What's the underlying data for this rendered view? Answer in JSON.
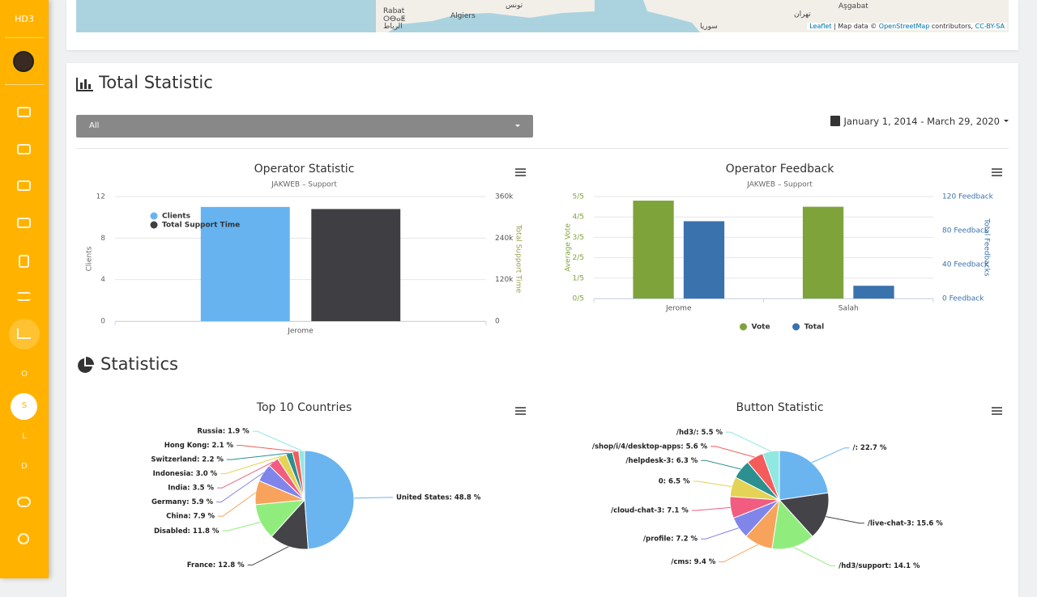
{
  "sidebar": {
    "brand": "HD3",
    "letters": [
      "O",
      "S",
      "L",
      "D"
    ]
  },
  "map": {
    "labels": [
      "Rabat",
      "ⵔⴱⴰⵟ",
      "الرباط",
      "Algiers",
      "تونس",
      "Aşgabat",
      "تهران",
      "سوريا"
    ],
    "attribution": {
      "leaflet": "Leaflet",
      "sep": " | Map data © ",
      "osm": "OpenStreetMap",
      "contrib": " contributors, ",
      "license": "CC-BY-SA"
    }
  },
  "total_section": {
    "title": "Total Statistic",
    "select": "All",
    "date_range": "January 1, 2014 - March 29, 2020"
  },
  "stats_section": {
    "title": "Statistics"
  },
  "chart_data": [
    {
      "type": "bar",
      "title": "Operator Statistic",
      "subtitle": "JAKWEB – Support",
      "categories": [
        "Jerome"
      ],
      "series": [
        {
          "name": "Clients",
          "color": "#66b3f0",
          "values": [
            11
          ]
        },
        {
          "name": "Total Support Time",
          "color": "#3f3f43",
          "values": [
            324000
          ],
          "axis": "y2"
        }
      ],
      "ylim": [
        0,
        12
      ],
      "yticks": [
        0,
        4,
        8,
        12
      ],
      "y_label": "Clients",
      "y_color": "#666666",
      "y2lim": [
        0,
        360000
      ],
      "y2ticks": [
        0,
        {
          "value": 120000,
          "label": "120k"
        },
        {
          "value": 240000,
          "label": "240k"
        },
        {
          "value": 360000,
          "label": "360k"
        }
      ],
      "y2_label": "Total Support Time",
      "y2_color": "#9aa04a",
      "grid": true,
      "legend": "top-left"
    },
    {
      "type": "bar",
      "title": "Operator Feedback",
      "subtitle": "JAKWEB – Support",
      "categories": [
        "Jerome",
        "Salah"
      ],
      "series": [
        {
          "name": "Vote",
          "color": "#7ea33a",
          "values": [
            4.8,
            4.5
          ]
        },
        {
          "name": "Total",
          "color": "#3a72ad",
          "values": [
            91,
            15
          ],
          "axis": "y2"
        }
      ],
      "ylim": [
        0,
        5
      ],
      "yticks": [
        {
          "value": 0,
          "label": "0/5"
        },
        {
          "value": 1,
          "label": "1/5"
        },
        {
          "value": 2,
          "label": "2/5"
        },
        {
          "value": 3,
          "label": "3/5"
        },
        {
          "value": 4,
          "label": "4/5"
        },
        {
          "value": 5,
          "label": "5/5"
        }
      ],
      "y_label": "Average Vote",
      "y_color": "#7ea33a",
      "y2lim": [
        0,
        120
      ],
      "y2ticks": [
        {
          "value": 0,
          "label": "0 Feedback"
        },
        {
          "value": 40,
          "label": "40 Feedback"
        },
        {
          "value": 80,
          "label": "80 Feedback"
        },
        {
          "value": 120,
          "label": "120 Feedback"
        }
      ],
      "y2_label": "Total Feedbacks",
      "y2_color": "#3a72ad",
      "grid": true,
      "legend": "bottom"
    },
    {
      "type": "pie",
      "title": "Top 10 Countries",
      "values": [
        48.8,
        12.8,
        11.8,
        7.9,
        5.9,
        3.5,
        3.0,
        2.2,
        2.1,
        1.9
      ],
      "labels": [
        "United States: 48.8 %",
        "France: 12.8 %",
        "Disabled: 11.8 %",
        "China: 7.9 %",
        "Germany: 5.9 %",
        "India: 3.5 %",
        "Indonesia: 3.0 %",
        "Switzerland: 2.2 %",
        "Hong Kong: 2.1 %",
        "Russia: 1.9 %"
      ],
      "colors": [
        "#6ab4f0",
        "#434348",
        "#90ed7d",
        "#f7a35c",
        "#8085e9",
        "#f15c80",
        "#e4d354",
        "#2b908f",
        "#f45b5b",
        "#91e8e1"
      ]
    },
    {
      "type": "pie",
      "title": "Button Statistic",
      "values": [
        22.7,
        15.6,
        14.1,
        9.4,
        7.2,
        7.1,
        6.5,
        6.3,
        5.6,
        5.5
      ],
      "labels": [
        "/: 22.7 %",
        "/live-chat-3: 15.6 %",
        "/hd3/support: 14.1 %",
        "/cms: 9.4 %",
        "/profile: 7.2 %",
        "/cloud-chat-3: 7.1 %",
        "0: 6.5 %",
        "/helpdesk-3: 6.3 %",
        "/shop/i/4/desktop-apps: 5.6 %",
        "/hd3/: 5.5 %"
      ],
      "colors": [
        "#6ab4f0",
        "#434348",
        "#90ed7d",
        "#f7a35c",
        "#8085e9",
        "#f15c80",
        "#e4d354",
        "#2b908f",
        "#f45b5b",
        "#91e8e1"
      ]
    }
  ]
}
